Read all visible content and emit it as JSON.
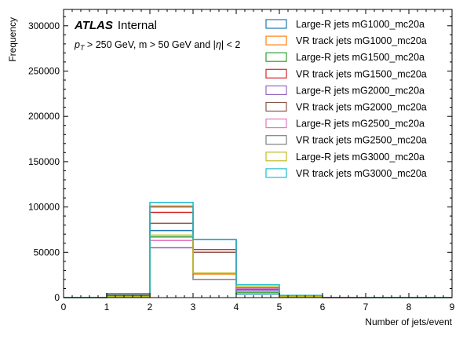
{
  "chart_data": {
    "type": "step-histogram",
    "xlabel": "Number of jets/event",
    "ylabel": "Frequency",
    "xlim": [
      0,
      9
    ],
    "ylim": [
      0,
      318000
    ],
    "xticks": [
      "0",
      "1",
      "2",
      "3",
      "4",
      "5",
      "6",
      "7",
      "8",
      "9"
    ],
    "yticks": [
      "0",
      "50000",
      "100000",
      "150000",
      "200000",
      "250000",
      "300000"
    ],
    "ytick_values": [
      0,
      50000,
      100000,
      150000,
      200000,
      250000,
      300000
    ],
    "bin_edges": [
      0,
      1,
      2,
      3,
      4,
      5,
      6,
      7,
      8,
      9
    ],
    "atlas_label": {
      "bold_italic": "ATLAS",
      "normal": "Internal"
    },
    "cuts_label": "p_T > 250 GeV, m > 50 GeV and |η| < 2",
    "cuts": {
      "pt_symbol": "p",
      "pt_sub": "T",
      "pt_rest": " > 250 GeV, m > 50 GeV and |",
      "eta": "η",
      "eta_rest": "| < 2"
    },
    "series": [
      {
        "name": "Large-R jets mG1000_mc20a",
        "color": "#1f77b4",
        "values": [
          0,
          1000,
          74000,
          64000,
          4000,
          200,
          0,
          0,
          0
        ]
      },
      {
        "name": "VR track jets mG1000_mc20a",
        "color": "#ff7f0e",
        "values": [
          0,
          2000,
          101000,
          26000,
          8000,
          800,
          100,
          0,
          0
        ]
      },
      {
        "name": "Large-R jets mG1500_mc20a",
        "color": "#2ca02c",
        "values": [
          0,
          1500,
          67000,
          64000,
          6000,
          300,
          0,
          0,
          0
        ]
      },
      {
        "name": "VR track jets mG1500_mc20a",
        "color": "#d62728",
        "values": [
          0,
          2500,
          94000,
          53000,
          9000,
          1000,
          100,
          0,
          0
        ]
      },
      {
        "name": "Large-R jets mG2000_mc20a",
        "color": "#9467bd",
        "values": [
          0,
          1000,
          55000,
          64000,
          8000,
          500,
          0,
          0,
          0
        ]
      },
      {
        "name": "VR track jets mG2000_mc20a",
        "color": "#8c564b",
        "values": [
          0,
          3000,
          82000,
          50000,
          10000,
          1200,
          100,
          0,
          0
        ]
      },
      {
        "name": "Large-R jets mG2500_mc20a",
        "color": "#e377c2",
        "values": [
          0,
          1200,
          63000,
          64000,
          10000,
          700,
          0,
          0,
          0
        ]
      },
      {
        "name": "VR track jets mG2500_mc20a",
        "color": "#7f7f7f",
        "values": [
          0,
          3500,
          100000,
          20000,
          11000,
          1500,
          200,
          0,
          0
        ]
      },
      {
        "name": "Large-R jets mG3000_mc20a",
        "color": "#bcbd22",
        "values": [
          0,
          1000,
          69000,
          27000,
          12000,
          1000,
          100,
          0,
          0
        ]
      },
      {
        "name": "VR track jets mG3000_mc20a",
        "color": "#17becf",
        "values": [
          0,
          4500,
          105000,
          64000,
          14000,
          2500,
          300,
          0,
          0
        ]
      }
    ]
  }
}
